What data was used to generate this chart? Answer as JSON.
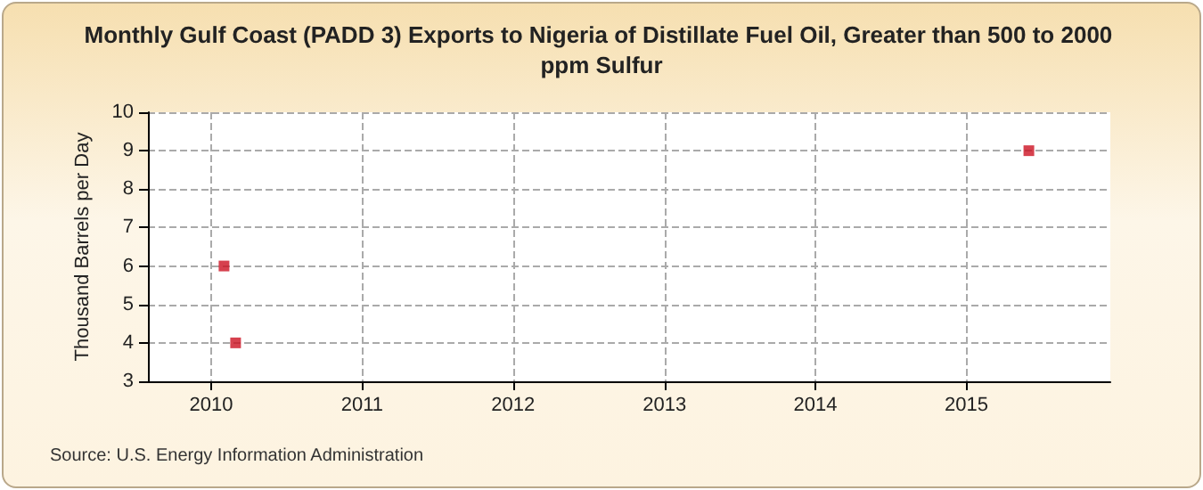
{
  "chart_data": {
    "type": "scatter",
    "title": "Monthly Gulf Coast (PADD 3) Exports to Nigeria of Distillate Fuel Oil, Greater than 500 to 2000 ppm Sulfur",
    "ylabel": "Thousand Barrels per Day",
    "annotations": [
      "Source: U.S. Energy Information Administration"
    ],
    "x": [
      "2010-02",
      "2010-03",
      "2015-06"
    ],
    "series": [
      {
        "color": "#cc1122",
        "values": [
          6,
          4,
          9
        ]
      }
    ],
    "xlim": [
      "2009-08",
      "2015-12-15"
    ],
    "xticks": [
      {
        "value": "2010",
        "label": "2010"
      },
      {
        "value": "2011",
        "label": "2011"
      },
      {
        "value": "2012",
        "label": "2012"
      },
      {
        "value": "2013",
        "label": "2013"
      },
      {
        "value": "2014",
        "label": "2014"
      },
      {
        "value": "2015",
        "label": "2015"
      }
    ],
    "ylim": [
      3,
      10
    ],
    "yticks": [
      3,
      4,
      5,
      6,
      7,
      8,
      9,
      10
    ],
    "grid": true,
    "marker": "square"
  }
}
